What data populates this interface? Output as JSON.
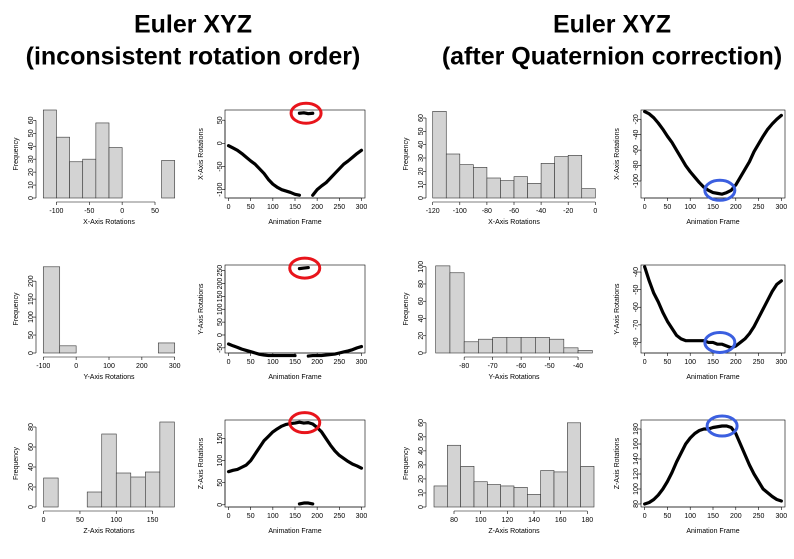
{
  "headings": [
    {
      "line1": "Euler XYZ",
      "line2": "(inconsistent rotation order)"
    },
    {
      "line1": "Euler XYZ",
      "line2": "(after Quaternion correction)"
    }
  ],
  "chart_data": [
    {
      "type": "histogram",
      "xlabel": "X-Axis Rotations",
      "ylabel": "Frequency",
      "color": "#d3d3d3",
      "bins": [
        -120,
        -100,
        -80,
        -60,
        -40,
        -20,
        0,
        20,
        40,
        60,
        80
      ],
      "values": [
        68,
        47,
        28,
        30,
        58,
        39,
        0,
        0,
        0,
        29
      ],
      "xlim": [
        -125,
        85
      ],
      "ylim": [
        0,
        68
      ],
      "xticks": [
        -100,
        -50,
        0,
        50
      ],
      "yticks": [
        0,
        10,
        20,
        30,
        40,
        50,
        60
      ]
    },
    {
      "type": "line",
      "xlabel": "Animation Frame",
      "ylabel": "X-Axis Rotations",
      "xlim": [
        -8,
        308
      ],
      "ylim": [
        -118,
        72
      ],
      "xticks": [
        0,
        50,
        100,
        150,
        200,
        250,
        300
      ],
      "yticks": [
        -100,
        -50,
        0,
        50
      ],
      "x": [
        0,
        10,
        20,
        30,
        40,
        50,
        60,
        70,
        80,
        90,
        100,
        110,
        120,
        130,
        140,
        150,
        160,
        170,
        180,
        190,
        200,
        210,
        220,
        230,
        240,
        250,
        260,
        270,
        280,
        290,
        300
      ],
      "series": [
        {
          "color": "#000000",
          "values": [
            -5,
            -10,
            -15,
            -22,
            -30,
            -38,
            -45,
            -55,
            -65,
            -78,
            -88,
            -95,
            -100,
            -103,
            -106,
            -110,
            -112,
            null,
            null,
            -112,
            -100,
            -92,
            -85,
            -75,
            -65,
            -55,
            -45,
            -38,
            -30,
            -22,
            -15
          ]
        },
        {
          "color": "#000000",
          "values": [
            null,
            null,
            null,
            null,
            null,
            null,
            null,
            null,
            null,
            null,
            null,
            null,
            null,
            null,
            null,
            null,
            65,
            66,
            64,
            65,
            null,
            null,
            null,
            null,
            null,
            null,
            null,
            null,
            null,
            null,
            null
          ]
        }
      ],
      "highlight": {
        "x": 175,
        "y": 65,
        "color": "#e8141b"
      }
    },
    {
      "type": "histogram",
      "xlabel": "Y-Axis Rotations",
      "ylabel": "Frequency",
      "color": "#d3d3d3",
      "bins": [
        -100,
        -50,
        0,
        50,
        100,
        150,
        200,
        250,
        300
      ],
      "values": [
        240,
        20,
        0,
        0,
        0,
        0,
        0,
        28
      ],
      "xlim": [
        -110,
        310
      ],
      "ylim": [
        0,
        245
      ],
      "xticks": [
        -100,
        0,
        100,
        200,
        300
      ],
      "yticks": [
        0,
        50,
        100,
        150,
        200
      ]
    },
    {
      "type": "line",
      "xlabel": "Animation Frame",
      "ylabel": "Y-Axis Rotations",
      "xlim": [
        -8,
        308
      ],
      "ylim": [
        -70,
        272
      ],
      "xticks": [
        0,
        50,
        100,
        150,
        200,
        250,
        300
      ],
      "yticks": [
        -50,
        0,
        50,
        100,
        150,
        200,
        250
      ],
      "x": [
        0,
        10,
        20,
        30,
        40,
        50,
        60,
        70,
        80,
        90,
        100,
        110,
        120,
        130,
        140,
        150,
        160,
        170,
        180,
        190,
        200,
        210,
        220,
        230,
        240,
        250,
        260,
        270,
        280,
        290,
        300
      ],
      "series": [
        {
          "color": "#000000",
          "values": [
            -35,
            -42,
            -48,
            -55,
            -60,
            -65,
            -70,
            -75,
            -78,
            -80,
            -80,
            -80,
            -80,
            -80,
            -80,
            -80,
            null,
            null,
            -82,
            -80,
            -80,
            -80,
            -78,
            -76,
            -74,
            -70,
            -66,
            -62,
            -57,
            -50,
            -45
          ]
        },
        {
          "color": "#000000",
          "values": [
            null,
            null,
            null,
            null,
            null,
            null,
            null,
            null,
            null,
            null,
            null,
            null,
            null,
            null,
            null,
            null,
            258,
            260,
            262,
            null,
            null,
            null,
            null,
            null,
            null,
            null,
            null,
            null,
            null,
            null,
            null
          ]
        }
      ],
      "highlight": {
        "x": 172,
        "y": 260,
        "color": "#e8141b"
      }
    },
    {
      "type": "histogram",
      "xlabel": "Z-Axis Rotations",
      "ylabel": "Frequency",
      "color": "#d3d3d3",
      "bins": [
        0,
        20,
        40,
        60,
        80,
        100,
        120,
        140,
        160,
        180
      ],
      "values": [
        29,
        0,
        0,
        15,
        73,
        34,
        30,
        35,
        85
      ],
      "xlim": [
        -5,
        185
      ],
      "ylim": [
        0,
        87
      ],
      "xticks": [
        0,
        50,
        100,
        150
      ],
      "yticks": [
        0,
        20,
        40,
        60,
        80
      ]
    },
    {
      "type": "line",
      "xlabel": "Animation Frame",
      "ylabel": "Z-Axis Rotations",
      "xlim": [
        -8,
        308
      ],
      "ylim": [
        -5,
        192
      ],
      "xticks": [
        0,
        50,
        100,
        150,
        200,
        250,
        300
      ],
      "yticks": [
        0,
        50,
        100,
        150
      ],
      "x": [
        0,
        10,
        20,
        30,
        40,
        50,
        60,
        70,
        80,
        90,
        100,
        110,
        120,
        130,
        140,
        150,
        160,
        170,
        180,
        190,
        200,
        210,
        220,
        230,
        240,
        250,
        260,
        270,
        280,
        290,
        300
      ],
      "series": [
        {
          "color": "#000000",
          "values": [
            75,
            78,
            80,
            85,
            90,
            100,
            115,
            130,
            145,
            155,
            165,
            172,
            178,
            182,
            184,
            185,
            187,
            185,
            186,
            183,
            175,
            165,
            150,
            135,
            122,
            112,
            105,
            98,
            92,
            88,
            83
          ]
        },
        {
          "color": "#000000",
          "values": [
            null,
            null,
            null,
            null,
            null,
            null,
            null,
            null,
            null,
            null,
            null,
            null,
            null,
            null,
            null,
            null,
            2,
            4,
            4,
            2,
            null,
            null,
            null,
            null,
            null,
            null,
            null,
            null,
            null,
            null,
            null
          ]
        }
      ],
      "highlight": {
        "x": 172,
        "y": 186,
        "color": "#e8141b"
      }
    },
    {
      "type": "histogram",
      "xlabel": "X-Axis Rotations",
      "ylabel": "Frequency",
      "color": "#d3d3d3",
      "bins": [
        -120,
        -110,
        -100,
        -90,
        -80,
        -70,
        -60,
        -50,
        -40,
        -30,
        -20,
        -10,
        0
      ],
      "values": [
        65,
        33,
        25,
        23,
        15,
        13,
        16,
        11,
        26,
        31,
        32,
        7
      ],
      "xlim": [
        -122,
        2
      ],
      "ylim": [
        0,
        66
      ],
      "xticks": [
        -120,
        -100,
        -80,
        -60,
        -40,
        -20,
        0
      ],
      "yticks": [
        0,
        10,
        20,
        30,
        40,
        50,
        60
      ]
    },
    {
      "type": "line",
      "xlabel": "Animation Frame",
      "ylabel": "X-Axis Rotations",
      "xlim": [
        -8,
        308
      ],
      "ylim": [
        -122,
        -8
      ],
      "xticks": [
        0,
        50,
        100,
        150,
        200,
        250,
        300
      ],
      "yticks": [
        -100,
        -80,
        -60,
        -40,
        -20
      ],
      "x": [
        0,
        10,
        20,
        30,
        40,
        50,
        60,
        70,
        80,
        90,
        100,
        110,
        120,
        130,
        140,
        150,
        160,
        170,
        180,
        190,
        200,
        210,
        220,
        230,
        240,
        250,
        260,
        270,
        280,
        290,
        300
      ],
      "series": [
        {
          "color": "#000000",
          "values": [
            -10,
            -13,
            -18,
            -25,
            -33,
            -42,
            -50,
            -60,
            -70,
            -80,
            -88,
            -95,
            -102,
            -108,
            -112,
            -115,
            -116,
            -117,
            -115,
            -112,
            -105,
            -95,
            -85,
            -75,
            -62,
            -52,
            -42,
            -33,
            -26,
            -20,
            -15
          ]
        }
      ],
      "highlight": {
        "x": 165,
        "y": -112,
        "color": "#3b5fe0"
      }
    },
    {
      "type": "histogram",
      "xlabel": "Y-Axis Rotations",
      "ylabel": "Frequency",
      "color": "#d3d3d3",
      "bins": [
        -90,
        -85,
        -80,
        -75,
        -70,
        -65,
        -60,
        -55,
        -50,
        -45,
        -40,
        -35
      ],
      "values": [
        101,
        93,
        13,
        16,
        18,
        18,
        18,
        18,
        16,
        6,
        3
      ],
      "xlim": [
        -92,
        -33
      ],
      "ylim": [
        0,
        102
      ],
      "xticks": [
        -80,
        -70,
        -60,
        -50,
        -40
      ],
      "yticks": [
        0,
        20,
        40,
        60,
        80,
        100
      ]
    },
    {
      "type": "line",
      "xlabel": "Animation Frame",
      "ylabel": "Y-Axis Rotations",
      "xlim": [
        -8,
        308
      ],
      "ylim": [
        -86,
        -36
      ],
      "xticks": [
        0,
        50,
        100,
        150,
        200,
        250,
        300
      ],
      "yticks": [
        -80,
        -70,
        -60,
        -50,
        -40
      ],
      "x": [
        0,
        10,
        20,
        30,
        40,
        50,
        60,
        70,
        80,
        90,
        100,
        110,
        120,
        130,
        140,
        150,
        160,
        170,
        180,
        190,
        200,
        210,
        220,
        230,
        240,
        250,
        260,
        270,
        280,
        290,
        300
      ],
      "series": [
        {
          "color": "#000000",
          "values": [
            -37,
            -45,
            -52,
            -57,
            -63,
            -68,
            -72,
            -76,
            -78,
            -79,
            -79,
            -79,
            -79,
            -79,
            -80,
            -80,
            -81,
            -81,
            -82,
            -83,
            -82,
            -80,
            -78,
            -75,
            -71,
            -66,
            -61,
            -56,
            -51,
            -47,
            -45
          ]
        }
      ],
      "highlight": {
        "x": 165,
        "y": -80,
        "color": "#3b5fe0"
      }
    },
    {
      "type": "histogram",
      "xlabel": "Z-Axis Rotations",
      "ylabel": "Frequency",
      "color": "#d3d3d3",
      "bins": [
        65,
        75,
        85,
        95,
        105,
        115,
        125,
        135,
        145,
        155,
        165,
        175,
        185
      ],
      "values": [
        15,
        44,
        29,
        18,
        16,
        15,
        14,
        9,
        26,
        25,
        60,
        29
      ],
      "xlim": [
        62,
        188
      ],
      "ylim": [
        0,
        62
      ],
      "xticks": [
        80,
        100,
        120,
        140,
        160,
        180
      ],
      "yticks": [
        0,
        10,
        20,
        30,
        40,
        50,
        60
      ]
    },
    {
      "type": "line",
      "xlabel": "Animation Frame",
      "ylabel": "Z-Axis Rotations",
      "xlim": [
        -8,
        308
      ],
      "ylim": [
        76,
        192
      ],
      "xticks": [
        0,
        50,
        100,
        150,
        200,
        250,
        300
      ],
      "yticks": [
        80,
        100,
        120,
        140,
        160,
        180
      ],
      "x": [
        0,
        10,
        20,
        30,
        40,
        50,
        60,
        70,
        80,
        90,
        100,
        110,
        120,
        130,
        140,
        150,
        160,
        170,
        180,
        190,
        200,
        210,
        220,
        230,
        240,
        250,
        260,
        270,
        280,
        290,
        300
      ],
      "series": [
        {
          "color": "#000000",
          "values": [
            80,
            82,
            86,
            92,
            100,
            110,
            122,
            136,
            148,
            160,
            168,
            174,
            178,
            180,
            180,
            182,
            183,
            184,
            184,
            182,
            174,
            160,
            146,
            132,
            120,
            110,
            100,
            95,
            90,
            86,
            84
          ]
        }
      ],
      "highlight": {
        "x": 170,
        "y": 184,
        "color": "#3b5fe0"
      }
    }
  ]
}
